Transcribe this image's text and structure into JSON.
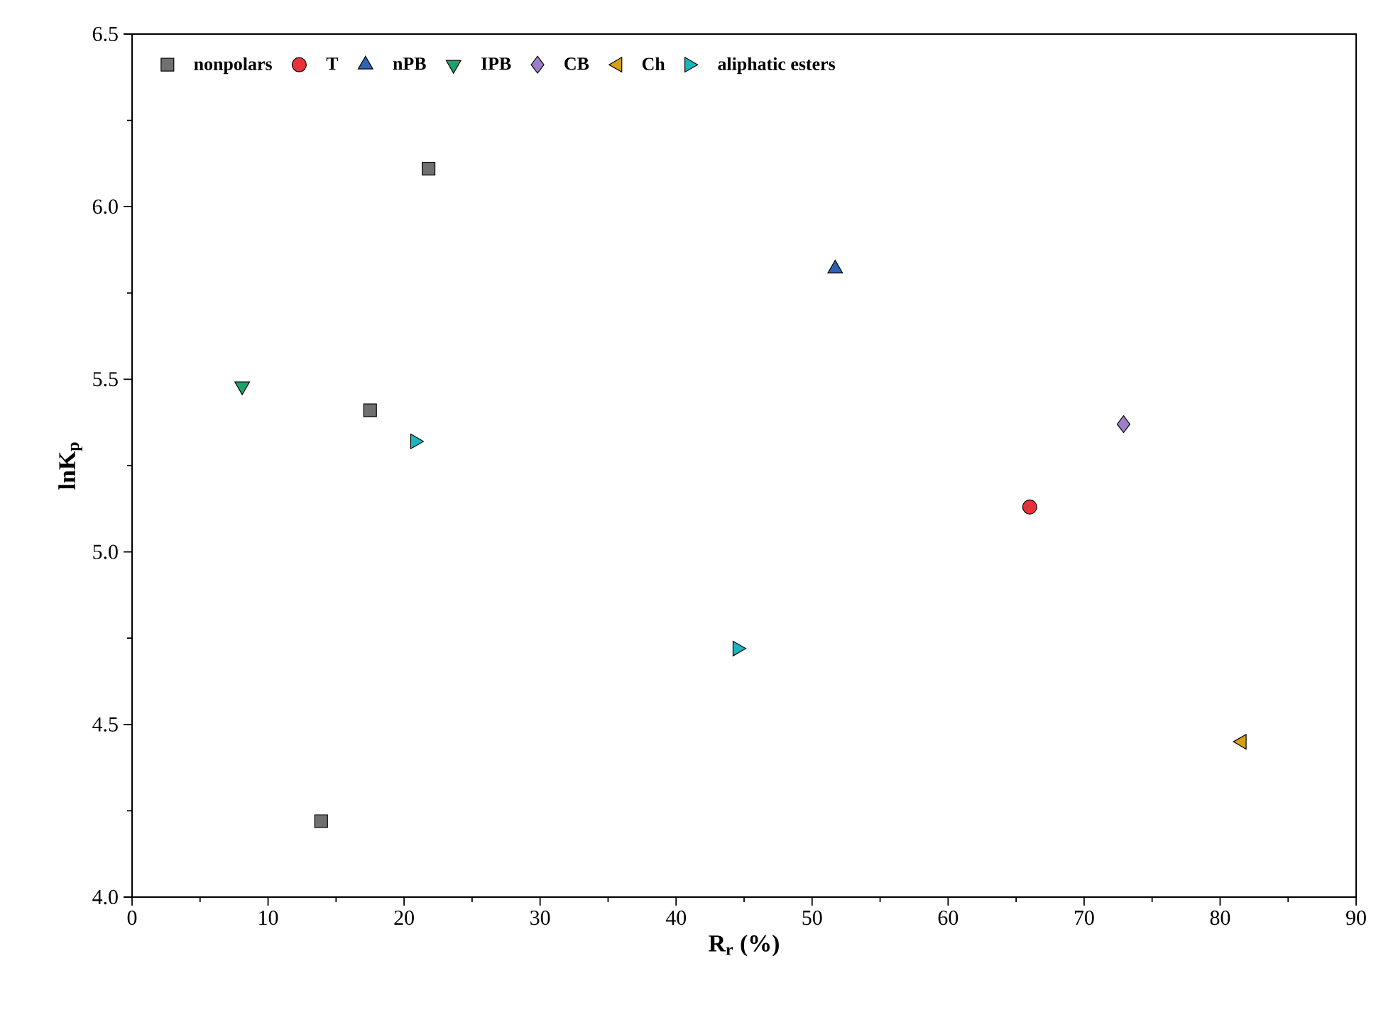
{
  "chart_data": {
    "type": "scatter",
    "xlabel": "R$_{r}$ (%)",
    "ylabel": "lnK$_{p}$",
    "xlim": [
      0,
      90
    ],
    "ylim": [
      4.0,
      6.5
    ],
    "xticks": [
      0,
      10,
      20,
      30,
      40,
      50,
      60,
      70,
      80,
      90
    ],
    "yticks": [
      {
        "value": 4.0,
        "label": "4.0"
      },
      {
        "value": 4.5,
        "label": "4.5"
      },
      {
        "value": 5.0,
        "label": "5.0"
      },
      {
        "value": 5.5,
        "label": "5.5"
      },
      {
        "value": 6.0,
        "label": "6.0"
      },
      {
        "value": 6.5,
        "label": "6.5"
      }
    ],
    "grid": false,
    "legend": "top left",
    "series": [
      {
        "name": "nonpolars",
        "color": "#707070",
        "marker": "square",
        "x": [
          21.8,
          17.5,
          13.9
        ],
        "values": [
          6.11,
          5.41,
          4.22
        ]
      },
      {
        "name": "T",
        "color": "#e8323a",
        "marker": "circle",
        "x": [
          66.0
        ],
        "values": [
          5.13
        ]
      },
      {
        "name": "nPB",
        "color": "#2e63b5",
        "marker": "triangle",
        "x": [
          51.7
        ],
        "values": [
          5.82
        ]
      },
      {
        "name": "IPB",
        "color": "#1aa36a",
        "marker": "triangle-down",
        "x": [
          8.1
        ],
        "values": [
          5.48
        ]
      },
      {
        "name": "CB",
        "color": "#9b7fc8",
        "marker": "diamond",
        "x": [
          72.9
        ],
        "values": [
          5.37
        ]
      },
      {
        "name": "Ch",
        "color": "#d4a017",
        "marker": "triangle-left",
        "x": [
          81.6
        ],
        "values": [
          4.45
        ]
      },
      {
        "name": "aliphatic esters",
        "color": "#17b7c0",
        "marker": "triangle-right",
        "x": [
          20.8,
          44.5
        ],
        "values": [
          5.32,
          4.72
        ]
      }
    ]
  }
}
